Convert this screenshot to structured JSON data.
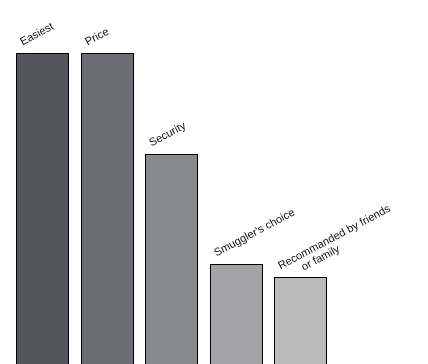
{
  "chart_data": {
    "type": "bar",
    "title": "",
    "xlabel": "",
    "ylabel": "",
    "categories": [
      [
        "Easiest"
      ],
      [
        "Price"
      ],
      [
        "Security"
      ],
      [
        "Smuggler's choice"
      ],
      [
        "Recommanded by friends",
        "or family"
      ]
    ],
    "values": [
      100,
      100,
      68,
      33,
      29
    ],
    "ylim": [
      0,
      100
    ],
    "grid": false,
    "legend": "none",
    "colors": [
      "#55555d",
      "#6d6e73",
      "#88898d",
      "#a3a3a6",
      "#bbbbbb"
    ]
  }
}
